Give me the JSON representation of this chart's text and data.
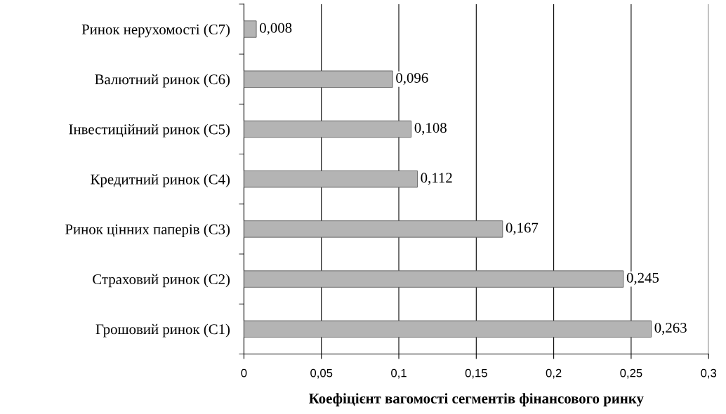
{
  "chart_data": {
    "type": "bar",
    "orientation": "horizontal",
    "xlabel": "Коефіцієнт вагомості сегментів фінансового ринку",
    "categories": [
      "Ринок нерухомості (С7)",
      "Валютний ринок (С6)",
      "Інвестиційний ринок (С5)",
      "Кредитний ринок (С4)",
      "Ринок цінних паперів (С3)",
      "Страховий ринок (С2)",
      "Грошовий ринок (С1)"
    ],
    "values": [
      0.008,
      0.096,
      0.108,
      0.112,
      0.167,
      0.245,
      0.263
    ],
    "value_labels": [
      "0,008",
      "0,096",
      "0,108",
      "0,112",
      "0,167",
      "0,245",
      "0,263"
    ],
    "color": "#b4b4b4",
    "xlim": [
      0,
      0.3
    ],
    "xticks": [
      0,
      {
        "value": 0.05,
        "label": "0,05"
      },
      {
        "value": 0.1,
        "label": "0,1"
      },
      {
        "value": 0.15,
        "label": "0,15"
      },
      {
        "value": 0.2,
        "label": "0,2"
      },
      {
        "value": 0.25,
        "label": "0,25"
      },
      {
        "value": 0.3,
        "label": "0,3"
      }
    ],
    "grid": "x"
  }
}
